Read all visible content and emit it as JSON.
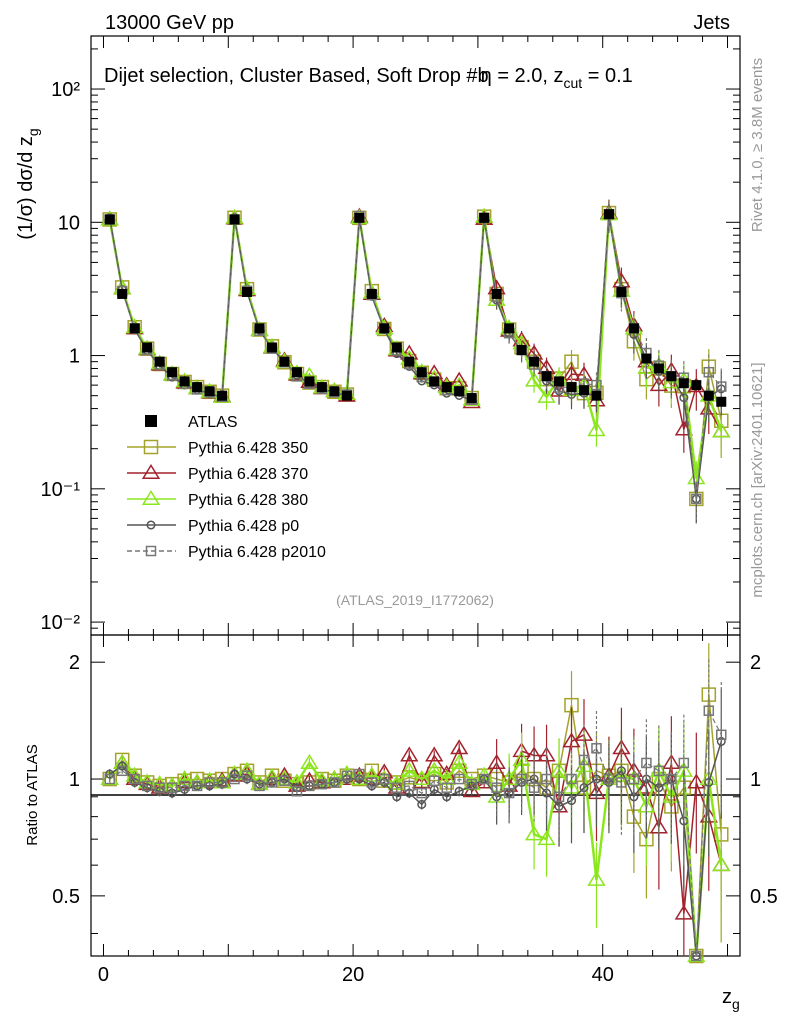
{
  "header": {
    "left": "13000 GeV pp",
    "right": "Jets"
  },
  "side_labels": {
    "rivet": "Rivet 4.1.0, ≥ 3.8M events",
    "mcplots": "mcplots.cern.ch [arXiv:2401.10621]"
  },
  "chart_data": {
    "type": "scatter",
    "title": "Dijet selection, Cluster Based, Soft Drop #b",
    "title_eta": "η = 2.0, z",
    "title_cut_sub": "cut",
    "title_end": " = 0.1",
    "reference": "(ATLAS_2019_I1772062)",
    "xlabel": "z",
    "xlabel_sub": "g",
    "ylabel": "(1/σ) dσ/d z",
    "ylabel_sub": "g",
    "ratio_ylabel": "Ratio to ATLAS",
    "xlim": [
      -1,
      51
    ],
    "ylim": [
      0.008,
      250
    ],
    "ratio_ylim": [
      0.35,
      2.35
    ],
    "yscale": "log",
    "x_ticks": [
      "0",
      "20",
      "40"
    ],
    "y_ticks": [
      "10⁻²",
      "10⁻¹",
      "1",
      "10",
      "10²"
    ],
    "ratio_ticks": [
      "0.5",
      "1",
      "2"
    ],
    "legend": [
      {
        "name": "ATLAS",
        "marker": "filled-square",
        "color": "#000000"
      },
      {
        "name": "Pythia 6.428 350",
        "marker": "open-square",
        "color": "#a3a32a"
      },
      {
        "name": "Pythia 6.428 370",
        "marker": "open-triangle",
        "color": "#a3222c"
      },
      {
        "name": "Pythia 6.428 380",
        "marker": "open-triangle",
        "color": "#8ce61e"
      },
      {
        "name": "Pythia 6.428 p0",
        "marker": "open-circle",
        "color": "#555555"
      },
      {
        "name": "Pythia 6.428 p2010",
        "marker": "open-square-dashed",
        "color": "#777777"
      }
    ],
    "x": [
      0.5,
      1.5,
      2.5,
      3.5,
      4.5,
      5.5,
      6.5,
      7.5,
      8.5,
      9.5,
      10.5,
      11.5,
      12.5,
      13.5,
      14.5,
      15.5,
      16.5,
      17.5,
      18.5,
      19.5,
      20.5,
      21.5,
      22.5,
      23.5,
      24.5,
      25.5,
      26.5,
      27.5,
      28.5,
      29.5,
      30.5,
      31.5,
      32.5,
      33.5,
      34.5,
      35.5,
      36.5,
      37.5,
      38.5,
      39.5,
      40.5,
      41.5,
      42.5,
      43.5,
      44.5,
      45.5,
      46.5,
      47.5,
      48.5,
      49.5
    ],
    "atlas": [
      10.5,
      2.9,
      1.6,
      1.15,
      0.9,
      0.75,
      0.64,
      0.58,
      0.54,
      0.5,
      10.5,
      3.0,
      1.6,
      1.15,
      0.9,
      0.75,
      0.64,
      0.58,
      0.54,
      0.5,
      10.8,
      2.9,
      1.6,
      1.15,
      0.9,
      0.75,
      0.64,
      0.58,
      0.54,
      0.48,
      10.8,
      2.9,
      1.6,
      1.1,
      0.9,
      0.7,
      0.64,
      0.58,
      0.55,
      0.5,
      11.5,
      3.0,
      1.6,
      0.95,
      0.8,
      0.7,
      0.62,
      0.6,
      0.5,
      0.45
    ],
    "series": [
      {
        "name": "Pythia 6.428 350",
        "ratio": [
          1.0,
          1.12,
          1.02,
          0.98,
          0.96,
          0.97,
          0.99,
          1.0,
          0.99,
          1.0,
          1.03,
          1.05,
          0.98,
          1.02,
          0.99,
          0.97,
          0.98,
          1.0,
          0.99,
          1.02,
          1.0,
          1.05,
          0.99,
          0.98,
          1.01,
          0.99,
          1.03,
          0.98,
          1.05,
          1.0,
          1.02,
          1.0,
          0.98,
          1.05,
          1.0,
          0.95,
          1.05,
          1.55,
          0.95,
          1.05,
          1.02,
          1.05,
          0.8,
          0.7,
          1.0,
          0.85,
          0.95,
          0.14,
          1.65,
          0.72
        ]
      },
      {
        "name": "Pythia 6.428 370",
        "ratio": [
          1.0,
          1.1,
          1.0,
          0.97,
          0.95,
          0.96,
          0.98,
          0.98,
          0.98,
          0.99,
          1.02,
          1.03,
          0.97,
          1.0,
          1.02,
          0.96,
          0.99,
          0.98,
          1.0,
          1.0,
          1.02,
          1.0,
          1.04,
          0.95,
          1.15,
          0.98,
          1.15,
          1.03,
          1.2,
          0.93,
          0.98,
          1.1,
          0.96,
          1.18,
          1.15,
          1.15,
          0.85,
          1.25,
          1.3,
          0.92,
          1.02,
          1.2,
          1.05,
          0.95,
          0.75,
          1.1,
          0.45,
          0.98,
          0.8,
          0.6
        ]
      },
      {
        "name": "Pythia 6.428 380",
        "ratio": [
          1.0,
          1.1,
          1.02,
          0.98,
          0.97,
          0.96,
          1.0,
          0.98,
          0.99,
          0.98,
          1.03,
          1.05,
          0.97,
          1.01,
          1.0,
          0.98,
          1.1,
          0.99,
          1.0,
          1.03,
          1.0,
          1.02,
          1.0,
          0.97,
          1.05,
          1.0,
          1.05,
          1.0,
          1.1,
          0.97,
          1.02,
          0.9,
          1.0,
          1.12,
          0.72,
          0.7,
          1.05,
          0.95,
          1.08,
          0.55,
          1.0,
          1.02,
          1.0,
          0.85,
          1.05,
          0.9,
          1.05,
          0.2,
          1.0,
          0.6
        ]
      },
      {
        "name": "Pythia 6.428 p0",
        "ratio": [
          1.03,
          1.08,
          0.98,
          0.95,
          0.93,
          0.92,
          0.94,
          0.96,
          0.96,
          0.97,
          1.03,
          1.0,
          0.97,
          0.98,
          1.0,
          0.95,
          0.96,
          0.97,
          0.98,
          1.0,
          1.0,
          0.96,
          0.98,
          0.9,
          0.92,
          0.86,
          0.94,
          0.9,
          0.93,
          0.96,
          1.0,
          0.9,
          0.92,
          0.98,
          1.0,
          0.92,
          0.85,
          0.88,
          0.95,
          1.0,
          0.98,
          1.05,
          0.9,
          1.0,
          0.95,
          1.0,
          0.78,
          0.14,
          0.98,
          1.25
        ]
      },
      {
        "name": "Pythia 6.428 p2010",
        "ratio": [
          1.0,
          1.05,
          1.0,
          0.96,
          0.95,
          0.95,
          0.96,
          0.96,
          0.98,
          0.98,
          1.0,
          1.02,
          0.96,
          0.98,
          0.99,
          0.93,
          0.96,
          0.97,
          0.98,
          1.02,
          1.03,
          0.98,
          1.0,
          0.95,
          0.96,
          0.92,
          0.99,
          0.95,
          1.0,
          0.97,
          1.0,
          0.95,
          0.92,
          1.0,
          0.95,
          1.0,
          0.9,
          1.0,
          1.12,
          1.2,
          1.0,
          0.98,
          1.0,
          1.1,
          1.05,
          1.0,
          1.1,
          0.14,
          1.5,
          1.3
        ]
      }
    ]
  }
}
